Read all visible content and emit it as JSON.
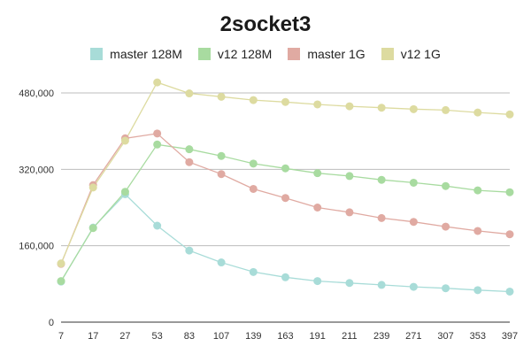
{
  "chart_data": {
    "type": "line",
    "title": "2socket3",
    "xlabel": "",
    "ylabel": "",
    "categories": [
      "7",
      "17",
      "27",
      "53",
      "83",
      "107",
      "139",
      "163",
      "191",
      "211",
      "239",
      "271",
      "307",
      "353",
      "397"
    ],
    "ylim": [
      0,
      480000
    ],
    "yticks": [
      0,
      160000,
      320000,
      480000
    ],
    "ytick_labels": [
      "0",
      "160,000",
      "320,000",
      "480,000"
    ],
    "grid": true,
    "legend_position": "top",
    "series": [
      {
        "name": "master 128M",
        "color": "#a8dcd8",
        "values": [
          85000,
          198000,
          268000,
          202000,
          150000,
          125000,
          105000,
          94000,
          86000,
          82000,
          78000,
          74000,
          71000,
          67000,
          64000
        ]
      },
      {
        "name": "v12 128M",
        "color": "#a8dba0",
        "values": [
          86000,
          197000,
          273000,
          372000,
          362000,
          348000,
          332000,
          322000,
          312000,
          306000,
          298000,
          292000,
          285000,
          276000,
          272000
        ]
      },
      {
        "name": "master 1G",
        "color": "#e0aaa2",
        "values": [
          122000,
          287000,
          385000,
          395000,
          335000,
          310000,
          279000,
          260000,
          240000,
          230000,
          218000,
          210000,
          200000,
          191000,
          184000
        ]
      },
      {
        "name": "v12 1G",
        "color": "#dddba0",
        "values": [
          123000,
          282000,
          380000,
          502000,
          479000,
          472000,
          465000,
          461000,
          456000,
          452000,
          449000,
          446000,
          444000,
          439000,
          435000
        ]
      }
    ]
  }
}
